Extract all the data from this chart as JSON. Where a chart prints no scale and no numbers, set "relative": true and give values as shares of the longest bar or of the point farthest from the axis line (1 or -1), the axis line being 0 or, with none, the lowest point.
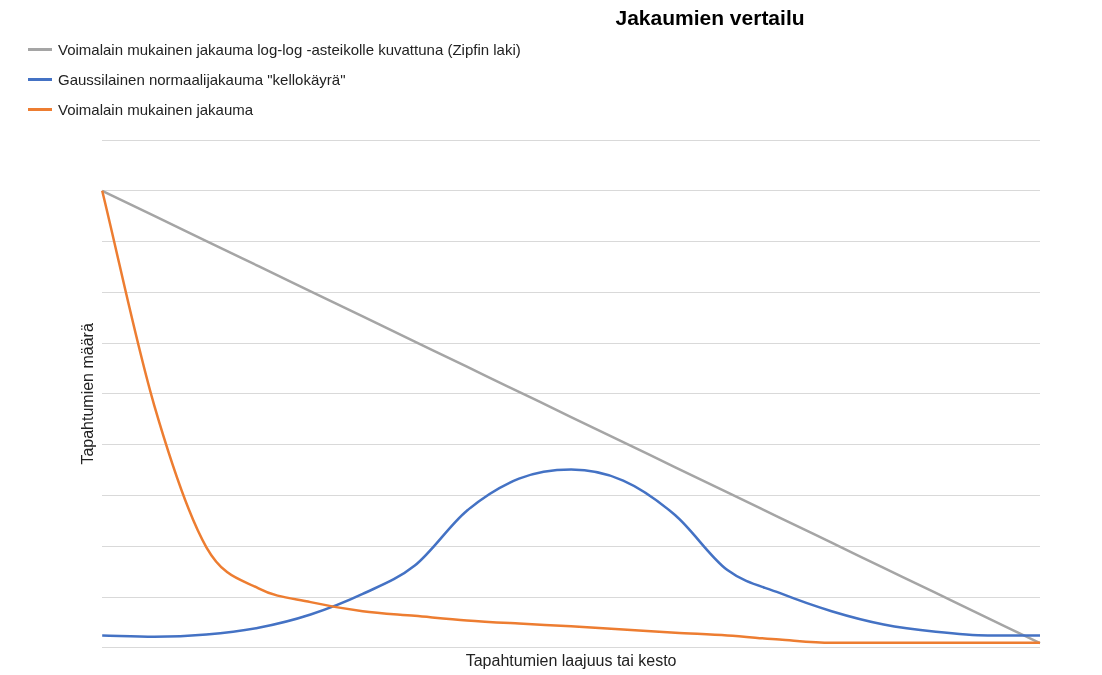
{
  "chart_data": {
    "type": "line",
    "title": "Jakaumien vertailu",
    "xlabel": "Tapahtumien laajuus tai kesto",
    "ylabel": "Tapahtumien määrä",
    "relative": true,
    "grid": "y",
    "legend": "top left",
    "marker": "none",
    "line_style": "solid",
    "categories": [
      null,
      null,
      null,
      null,
      null,
      null,
      null,
      null,
      null,
      null,
      null,
      null,
      null,
      null,
      null,
      null,
      null,
      null,
      null
    ],
    "series": [
      {
        "name": "Voimalain mukainen jakauma log-log -asteikolle kuvattuna (Zipfin laki)",
        "color": "#a5a5a5",
        "values": [
          1,
          0.945,
          0.89,
          0.835,
          0.78,
          0.725,
          0.67,
          0.615,
          0.56,
          0.505,
          0.45,
          0.395,
          0.34,
          0.285,
          0.23,
          0.175,
          0.12,
          0.065,
          0.01
        ]
      },
      {
        "name": "Gaussilainen normaalijakauma \"kellokäyrä\"",
        "color": "#4472c4",
        "values": [
          0.027,
          0.024,
          0.029,
          0.044,
          0.073,
          0.118,
          0.18,
          0.3,
          0.37,
          0.39,
          0.366,
          0.29,
          0.17,
          0.12,
          0.08,
          0.051,
          0.035,
          0.027,
          0.027
        ]
      },
      {
        "name": "Voimalain mukainen jakauma",
        "color": "#ed7d31",
        "values": [
          1,
          0.53,
          0.22,
          0.13,
          0.1,
          0.08,
          0.07,
          0.06,
          0.053,
          0.047,
          0.04,
          0.033,
          0.027,
          0.018,
          0.011,
          0.011,
          0.011,
          0.011,
          0.011
        ]
      }
    ]
  }
}
